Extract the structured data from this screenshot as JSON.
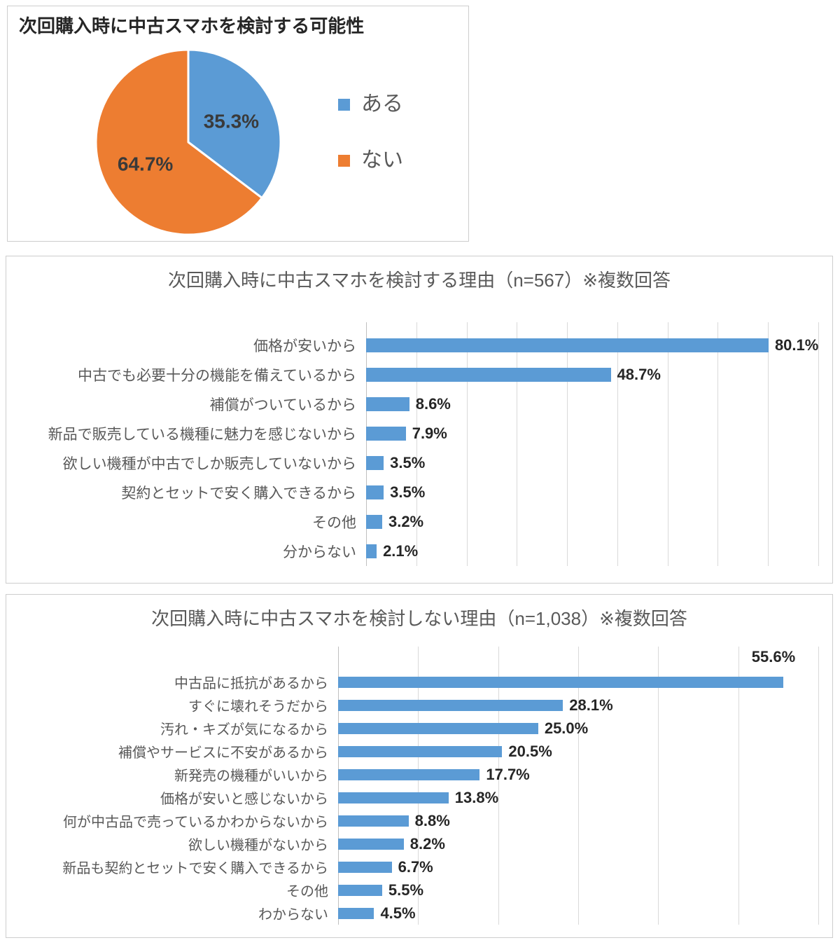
{
  "chart_data": [
    {
      "type": "pie",
      "title": "次回購入時に中古スマホを検討する可能性",
      "labels": [
        "ある",
        "ない"
      ],
      "values": [
        35.3,
        64.7
      ],
      "value_labels": [
        "35.3%",
        "64.7%"
      ],
      "colors": [
        "#5b9bd5",
        "#ed7d31"
      ],
      "legend_position": "right",
      "start_angle_deg": -90,
      "direction": "clockwise"
    },
    {
      "type": "bar",
      "orientation": "horizontal",
      "title": "次回購入時に中古スマホを検討する理由（n=567）※複数回答",
      "categories": [
        "価格が安いから",
        "中古でも必要十分の機能を備えているから",
        "補償がついているから",
        "新品で販売している機種に魅力を感じないから",
        "欲しい機種が中古でしか販売していないから",
        "契約とセットで安く購入できるから",
        "その他",
        "分からない"
      ],
      "values": [
        80.1,
        48.7,
        8.6,
        7.9,
        3.5,
        3.5,
        3.2,
        2.1
      ],
      "value_labels": [
        "80.1%",
        "48.7%",
        "8.6%",
        "7.9%",
        "3.5%",
        "3.5%",
        "3.2%",
        "2.1%"
      ],
      "xlim": [
        0,
        90
      ],
      "grid_step": 10,
      "grid": true,
      "bar_color": "#5b9bd5"
    },
    {
      "type": "bar",
      "orientation": "horizontal",
      "title": "次回購入時に中古スマホを検討しない理由（n=1,038）※複数回答",
      "categories": [
        "中古品に抵抗があるから",
        "すぐに壊れそうだから",
        "汚れ・キズが気になるから",
        "補償やサービスに不安があるから",
        "新発売の機種がいいから",
        "価格が安いと感じないから",
        "何が中古品で売っているかわからないから",
        "欲しい機種がないから",
        "新品も契約とセットで安く購入できるから",
        "その他",
        "わからない"
      ],
      "values": [
        55.6,
        28.1,
        25.0,
        20.5,
        17.7,
        13.8,
        8.8,
        8.2,
        6.7,
        5.5,
        4.5
      ],
      "value_labels": [
        "55.6%",
        "28.1%",
        "25.0%",
        "20.5%",
        "17.7%",
        "13.8%",
        "8.8%",
        "8.2%",
        "6.7%",
        "5.5%",
        "4.5%"
      ],
      "xlim": [
        0,
        60
      ],
      "grid_step": 10,
      "grid": true,
      "bar_color": "#5b9bd5"
    }
  ]
}
